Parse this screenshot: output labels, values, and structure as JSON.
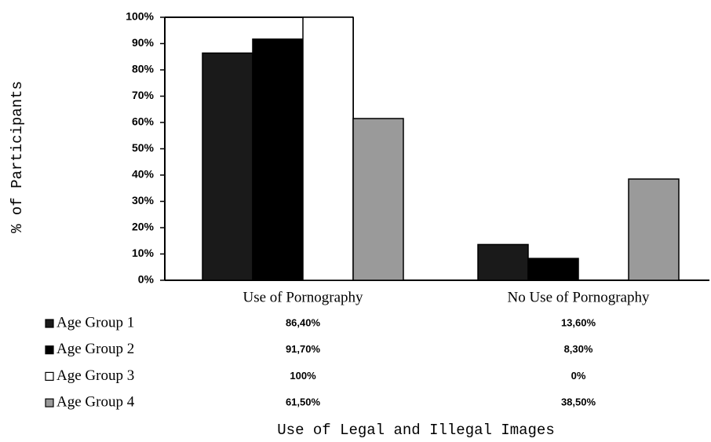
{
  "chart_data": {
    "type": "bar",
    "categories": [
      "Use of Pornography",
      "No Use of Pornography"
    ],
    "series": [
      {
        "name": "Age Group 1",
        "color": "#1a1a1a",
        "values": [
          86.4,
          13.6
        ],
        "value_labels": [
          "86,40%",
          "13,60%"
        ]
      },
      {
        "name": "Age Group 2",
        "color": "#000000",
        "values": [
          91.7,
          8.3
        ],
        "value_labels": [
          "91,70%",
          "8,30%"
        ]
      },
      {
        "name": "Age Group 3",
        "color": "#ffffff",
        "values": [
          100,
          0
        ],
        "value_labels": [
          "100%",
          "0%"
        ]
      },
      {
        "name": "Age Group 4",
        "color": "#9a9a9a",
        "values": [
          61.5,
          38.5
        ],
        "value_labels": [
          "61,50%",
          "38,50%"
        ]
      }
    ],
    "ylim": [
      0,
      100
    ],
    "yticks": [
      {
        "value": 0,
        "label": "0%"
      },
      {
        "value": 10,
        "label": "10%"
      },
      {
        "value": 20,
        "label": "20%"
      },
      {
        "value": 30,
        "label": "30%"
      },
      {
        "value": 40,
        "label": "40%"
      },
      {
        "value": 50,
        "label": "50%"
      },
      {
        "value": 60,
        "label": "60%"
      },
      {
        "value": 70,
        "label": "70%"
      },
      {
        "value": 80,
        "label": "80%"
      },
      {
        "value": 90,
        "label": "90%"
      },
      {
        "value": 100,
        "label": "100%"
      }
    ],
    "xlabel": "Use of Legal and Illegal Images",
    "ylabel": "% of Participants"
  }
}
